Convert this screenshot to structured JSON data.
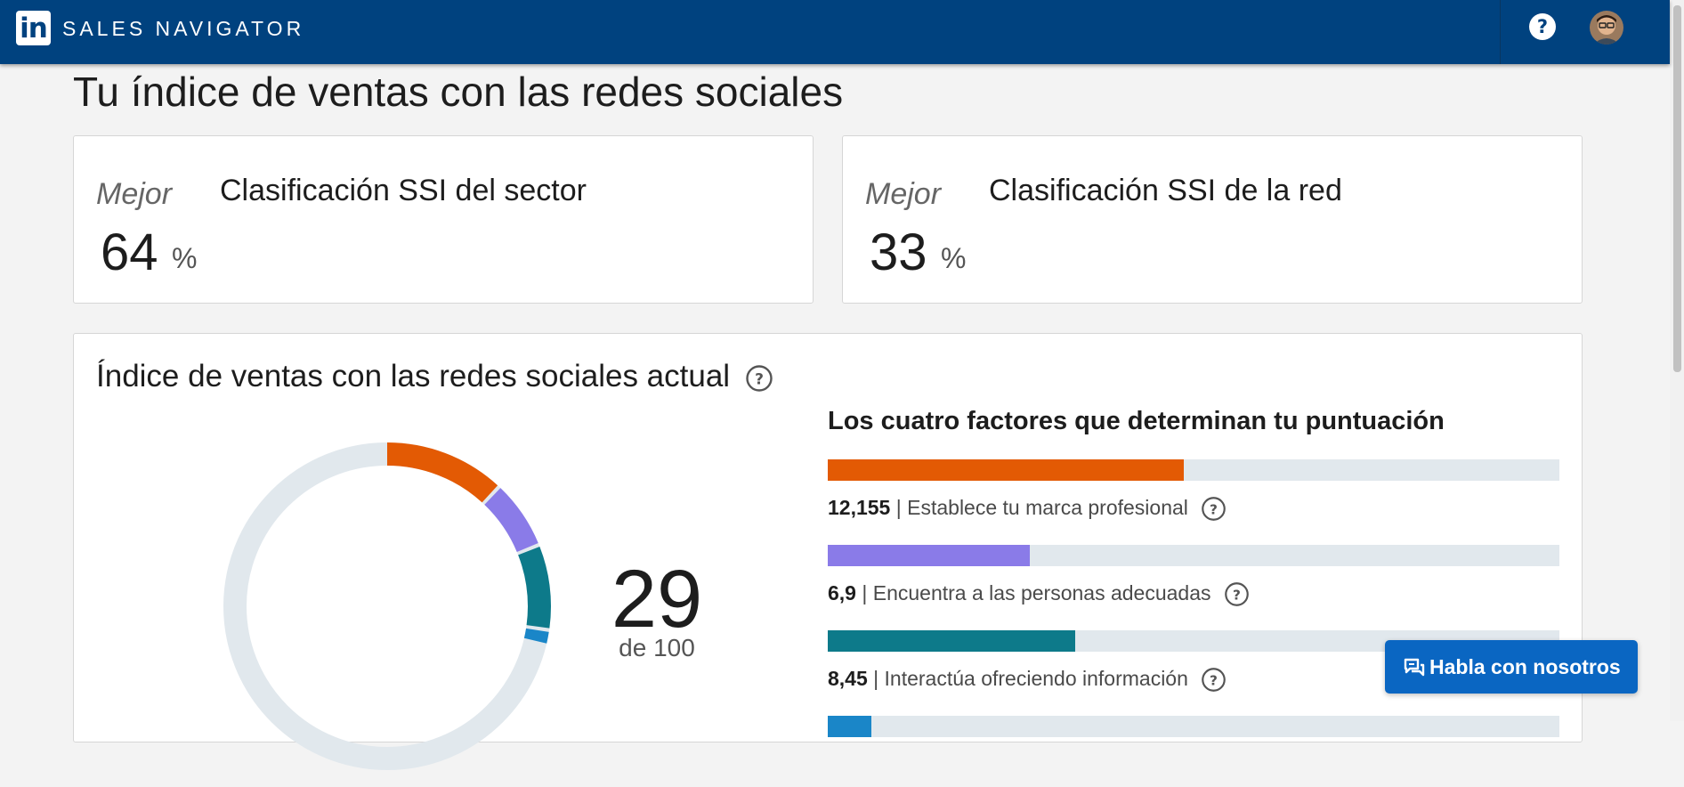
{
  "header": {
    "logo_text": "in",
    "brand": "SALES NAVIGATOR",
    "help_icon": "help-circle-icon",
    "avatar_icon": "user-avatar"
  },
  "page": {
    "title": "Tu índice de ventas con las redes sociales"
  },
  "rankings": [
    {
      "better_label": "Mejor",
      "value": "64",
      "unit": "%",
      "title": "Clasificación SSI del sector"
    },
    {
      "better_label": "Mejor",
      "value": "33",
      "unit": "%",
      "title": "Clasificación SSI de la red"
    }
  ],
  "ssi": {
    "title": "Índice de ventas con las redes sociales actual",
    "score": "29",
    "score_of": "de 100",
    "factors_title": "Los cuatro factores que determinan tu puntuación",
    "factors": [
      {
        "value": "12,155",
        "label": "Establece tu marca profesional",
        "number": 12.155,
        "max": 25,
        "color": "#e35a04"
      },
      {
        "value": "6,9",
        "label": "Encuentra a las personas adecuadas",
        "number": 6.9,
        "max": 25,
        "color": "#8a7be8"
      },
      {
        "value": "8,45",
        "label": "Interactúa ofreciendo información",
        "number": 8.45,
        "max": 25,
        "color": "#0d7a8a"
      },
      {
        "value": "",
        "label": "",
        "number": 1.5,
        "max": 25,
        "color": "#1a86c8"
      }
    ],
    "donut_track_color": "#e1e8ed"
  },
  "chat": {
    "label": "Habla con nosotros",
    "icon": "chat-bubbles-icon"
  }
}
